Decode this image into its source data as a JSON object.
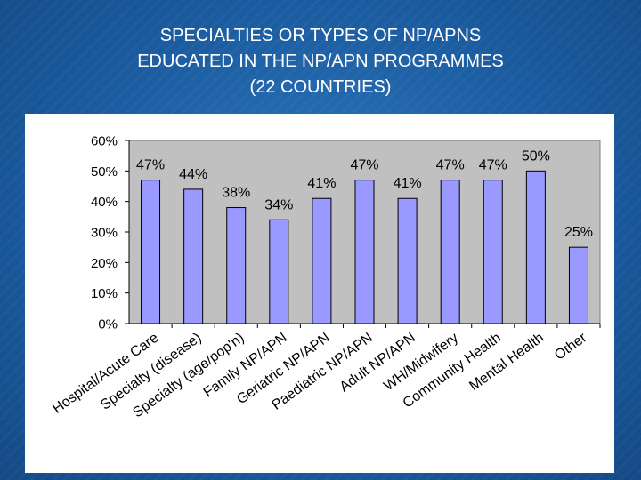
{
  "slide": {
    "title_lines": [
      "SPECIALTIES OR TYPES OF NP/APNS",
      "EDUCATED IN THE NP/APN PROGRAMMES",
      "(22 COUNTRIES)"
    ]
  },
  "colors": {
    "background": "#1f63a8",
    "plot_area": "#c0c0c0",
    "bar_fill": "#9999ff",
    "bar_stroke": "#000000"
  },
  "chart_data": {
    "type": "bar",
    "title": "",
    "xlabel": "",
    "ylabel": "",
    "ylim": [
      0,
      60
    ],
    "y_unit": "%",
    "yticks": [
      0,
      10,
      20,
      30,
      40,
      50,
      60
    ],
    "ytick_labels": [
      "0%",
      "10%",
      "20%",
      "30%",
      "40%",
      "50%",
      "60%"
    ],
    "grid": false,
    "legend": "none",
    "categories": [
      "Hospital/Acute Care",
      "Specialty (disease)",
      "Specialty (age/pop'n)",
      "Family NP/APN",
      "Geriatric NP/APN",
      "Paediatric NP/APN",
      "Adult NP/APN",
      "WH/Midwifery",
      "Community Health",
      "Mental Health",
      "Other"
    ],
    "values": [
      47,
      44,
      38,
      34,
      41,
      47,
      41,
      47,
      47,
      50,
      25
    ],
    "value_labels": [
      "47%",
      "44%",
      "38%",
      "34%",
      "41%",
      "47%",
      "41%",
      "47%",
      "47%",
      "50%",
      "25%"
    ]
  }
}
